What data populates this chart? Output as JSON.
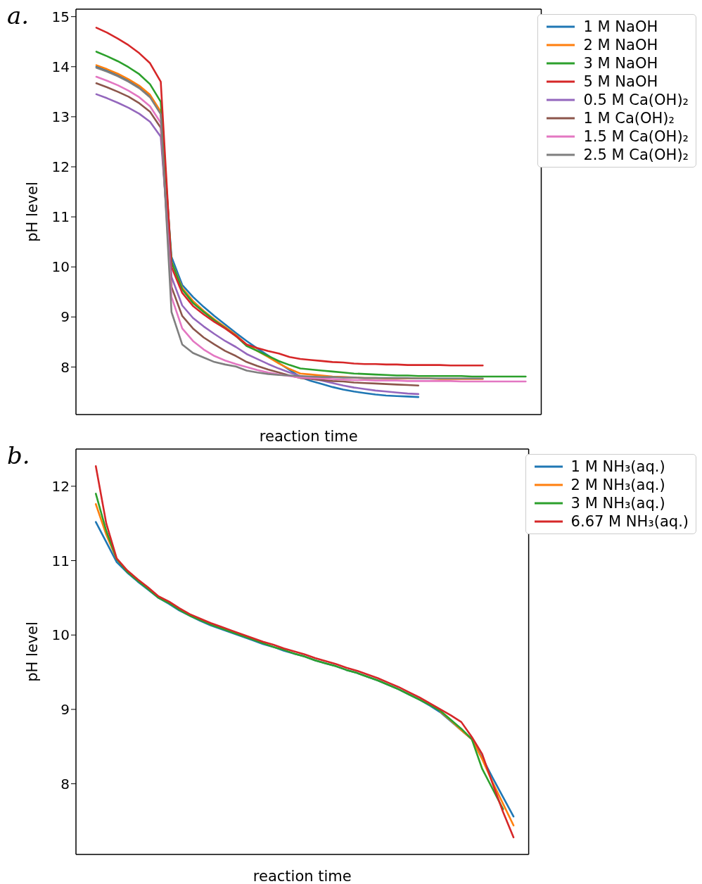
{
  "chart_data": [
    {
      "type": "line",
      "title": "a.",
      "xlabel": "reaction time",
      "ylabel": "pH level",
      "ylim": [
        7.05,
        15.15
      ],
      "yticks": [
        8,
        9,
        10,
        11,
        12,
        13,
        14,
        15
      ],
      "legend": "top right",
      "tick_labels": "y",
      "marker": "none",
      "line_style": "solid",
      "categories": [
        null,
        null,
        null,
        null,
        null,
        null,
        null,
        null,
        null,
        null,
        null,
        null,
        null,
        null,
        null,
        null,
        null,
        null,
        null,
        null,
        null,
        null,
        null,
        null,
        null,
        null,
        null,
        null,
        null,
        null,
        null,
        null,
        null,
        null,
        null,
        null,
        null,
        null,
        null,
        null,
        null
      ],
      "series": [
        {
          "name": "1 M NaOH",
          "color": "#1f77b4",
          "values": [
            14.0,
            13.92,
            13.83,
            13.72,
            13.59,
            13.41,
            13.07,
            10.2,
            9.64,
            9.4,
            9.2,
            9.02,
            8.85,
            8.68,
            8.52,
            8.37,
            8.23,
            8.08,
            7.94,
            7.8,
            7.72,
            7.66,
            7.6,
            7.55,
            7.51,
            7.48,
            7.45,
            7.43,
            7.42,
            7.41,
            7.4,
            null,
            null,
            null,
            null,
            null,
            null,
            null,
            null,
            null,
            null
          ]
        },
        {
          "name": "2 M NaOH",
          "color": "#ff7f0e",
          "values": [
            14.03,
            13.95,
            13.86,
            13.75,
            13.62,
            13.44,
            13.1,
            10.1,
            9.58,
            9.32,
            9.12,
            8.95,
            8.8,
            8.64,
            8.45,
            8.32,
            8.2,
            8.07,
            7.96,
            7.87,
            7.85,
            7.83,
            7.81,
            7.8,
            7.79,
            7.78,
            7.78,
            7.77,
            7.77,
            7.77,
            7.77,
            7.77,
            7.76,
            7.76,
            7.76,
            7.76,
            7.76,
            null,
            null,
            null,
            null
          ]
        },
        {
          "name": "3 M NaOH",
          "color": "#2ca02c",
          "values": [
            14.3,
            14.21,
            14.11,
            13.99,
            13.85,
            13.65,
            13.3,
            10.1,
            9.55,
            9.28,
            9.1,
            8.93,
            8.78,
            8.62,
            8.42,
            8.32,
            8.22,
            8.12,
            8.04,
            7.97,
            7.95,
            7.93,
            7.91,
            7.89,
            7.87,
            7.86,
            7.85,
            7.84,
            7.83,
            7.83,
            7.82,
            7.82,
            7.82,
            7.82,
            7.82,
            7.81,
            7.81,
            7.81,
            7.81,
            7.81,
            7.81
          ]
        },
        {
          "name": "5 M NaOH",
          "color": "#d62728",
          "values": [
            14.78,
            14.68,
            14.56,
            14.43,
            14.27,
            14.07,
            13.7,
            10.0,
            9.48,
            9.22,
            9.05,
            8.9,
            8.77,
            8.62,
            8.45,
            8.38,
            8.32,
            8.27,
            8.2,
            8.16,
            8.14,
            8.12,
            8.1,
            8.09,
            8.07,
            8.06,
            8.06,
            8.05,
            8.05,
            8.04,
            8.04,
            8.04,
            8.04,
            8.03,
            8.03,
            8.03,
            8.03,
            null,
            null,
            null,
            null
          ]
        },
        {
          "name": "0.5 M Ca(OH)₂",
          "color": "#9467bd",
          "values": [
            13.45,
            13.37,
            13.28,
            13.18,
            13.06,
            12.9,
            12.6,
            9.8,
            9.23,
            8.98,
            8.81,
            8.66,
            8.52,
            8.4,
            8.26,
            8.16,
            8.06,
            7.97,
            7.89,
            7.82,
            7.77,
            7.73,
            7.68,
            7.63,
            7.59,
            7.56,
            7.53,
            7.51,
            7.49,
            7.47,
            7.46,
            null,
            null,
            null,
            null,
            null,
            null,
            null,
            null,
            null,
            null
          ]
        },
        {
          "name": "1 M Ca(OH)₂",
          "color": "#8c564b",
          "values": [
            13.67,
            13.59,
            13.5,
            13.4,
            13.27,
            13.1,
            12.78,
            9.6,
            9.02,
            8.77,
            8.59,
            8.45,
            8.32,
            8.22,
            8.1,
            8.02,
            7.95,
            7.89,
            7.83,
            7.78,
            7.76,
            7.74,
            7.72,
            7.71,
            7.69,
            7.68,
            7.67,
            7.66,
            7.65,
            7.64,
            7.63,
            null,
            null,
            null,
            null,
            null,
            null,
            null,
            null,
            null,
            null
          ]
        },
        {
          "name": "1.5 M Ca(OH)₂",
          "color": "#e377c2",
          "values": [
            13.8,
            13.72,
            13.63,
            13.52,
            13.39,
            13.21,
            12.88,
            9.4,
            8.77,
            8.52,
            8.35,
            8.22,
            8.13,
            8.06,
            8.0,
            7.94,
            7.89,
            7.85,
            7.82,
            7.79,
            7.78,
            7.77,
            7.76,
            7.75,
            7.74,
            7.74,
            7.73,
            7.73,
            7.73,
            7.72,
            7.72,
            7.72,
            7.72,
            7.72,
            7.71,
            7.71,
            7.71,
            7.71,
            7.71,
            7.71,
            7.71
          ]
        },
        {
          "name": "2.5 M Ca(OH)₂",
          "color": "#7f7f7f",
          "values": [
            13.98,
            13.9,
            13.81,
            13.7,
            13.57,
            13.39,
            13.05,
            9.1,
            8.45,
            8.28,
            8.19,
            8.1,
            8.05,
            8.01,
            7.93,
            7.89,
            7.86,
            7.84,
            7.83,
            7.82,
            7.81,
            7.8,
            7.8,
            7.79,
            7.79,
            7.78,
            7.78,
            7.78,
            7.78,
            7.78,
            7.77,
            7.77,
            7.77,
            7.77,
            7.77,
            7.77,
            7.77,
            null,
            null,
            null,
            null
          ]
        }
      ]
    },
    {
      "type": "line",
      "title": "b.",
      "xlabel": "reaction time",
      "ylabel": "pH level",
      "ylim": [
        7.05,
        12.5
      ],
      "yticks": [
        8,
        9,
        10,
        11,
        12
      ],
      "legend": "top right",
      "tick_labels": "y",
      "marker": "none",
      "line_style": "solid",
      "categories": [
        null,
        null,
        null,
        null,
        null,
        null,
        null,
        null,
        null,
        null,
        null,
        null,
        null,
        null,
        null,
        null,
        null,
        null,
        null,
        null,
        null,
        null,
        null,
        null,
        null,
        null,
        null,
        null,
        null,
        null,
        null,
        null,
        null,
        null,
        null,
        null,
        null,
        null,
        null,
        null,
        null
      ],
      "series": [
        {
          "name": "1 M NH₃(aq.)",
          "color": "#1f77b4",
          "values": [
            11.52,
            11.25,
            10.98,
            10.84,
            10.72,
            10.61,
            10.5,
            10.42,
            10.33,
            10.26,
            10.19,
            10.13,
            10.08,
            10.03,
            9.98,
            9.93,
            9.88,
            9.84,
            9.79,
            9.75,
            9.71,
            9.66,
            9.62,
            9.58,
            9.53,
            9.49,
            9.44,
            9.39,
            9.33,
            9.27,
            9.2,
            9.13,
            9.05,
            8.96,
            8.84,
            8.72,
            8.6,
            8.35,
            8.08,
            7.82,
            7.56
          ]
        },
        {
          "name": "2 M NH₃(aq.)",
          "color": "#ff7f0e",
          "values": [
            11.76,
            11.35,
            11.02,
            null,
            null,
            null,
            null,
            null,
            null,
            null,
            null,
            null,
            null,
            null,
            null,
            null,
            null,
            null,
            null,
            null,
            null,
            null,
            null,
            null,
            null,
            null,
            null,
            null,
            null,
            null,
            null,
            null,
            null,
            8.97,
            8.85,
            8.72,
            8.6,
            8.33,
            8.02,
            7.73,
            7.44
          ]
        },
        {
          "name": "3 M NH₃(aq.)",
          "color": "#2ca02c",
          "values": [
            11.9,
            11.4,
            11.02,
            10.85,
            10.73,
            10.62,
            10.5,
            10.43,
            10.34,
            10.26,
            10.2,
            10.14,
            10.09,
            10.04,
            9.99,
            9.94,
            9.89,
            9.84,
            9.8,
            9.75,
            9.71,
            9.66,
            9.62,
            9.58,
            9.53,
            9.49,
            9.44,
            9.39,
            9.33,
            9.27,
            9.2,
            9.13,
            9.06,
            8.98,
            8.86,
            8.74,
            8.6,
            8.2,
            7.93,
            7.66,
            null
          ]
        },
        {
          "name": "6.67 M NH₃(aq.)",
          "color": "#d62728",
          "values": [
            12.27,
            11.5,
            11.03,
            10.87,
            10.75,
            10.64,
            10.52,
            10.45,
            10.36,
            10.28,
            10.22,
            10.16,
            10.11,
            10.06,
            10.01,
            9.96,
            9.91,
            9.87,
            9.82,
            9.78,
            9.74,
            9.69,
            9.65,
            9.61,
            9.56,
            9.52,
            9.47,
            9.42,
            9.36,
            9.3,
            9.23,
            9.16,
            9.08,
            9.0,
            8.92,
            8.83,
            8.63,
            8.4,
            8.0,
            7.62,
            7.28
          ]
        }
      ]
    }
  ]
}
